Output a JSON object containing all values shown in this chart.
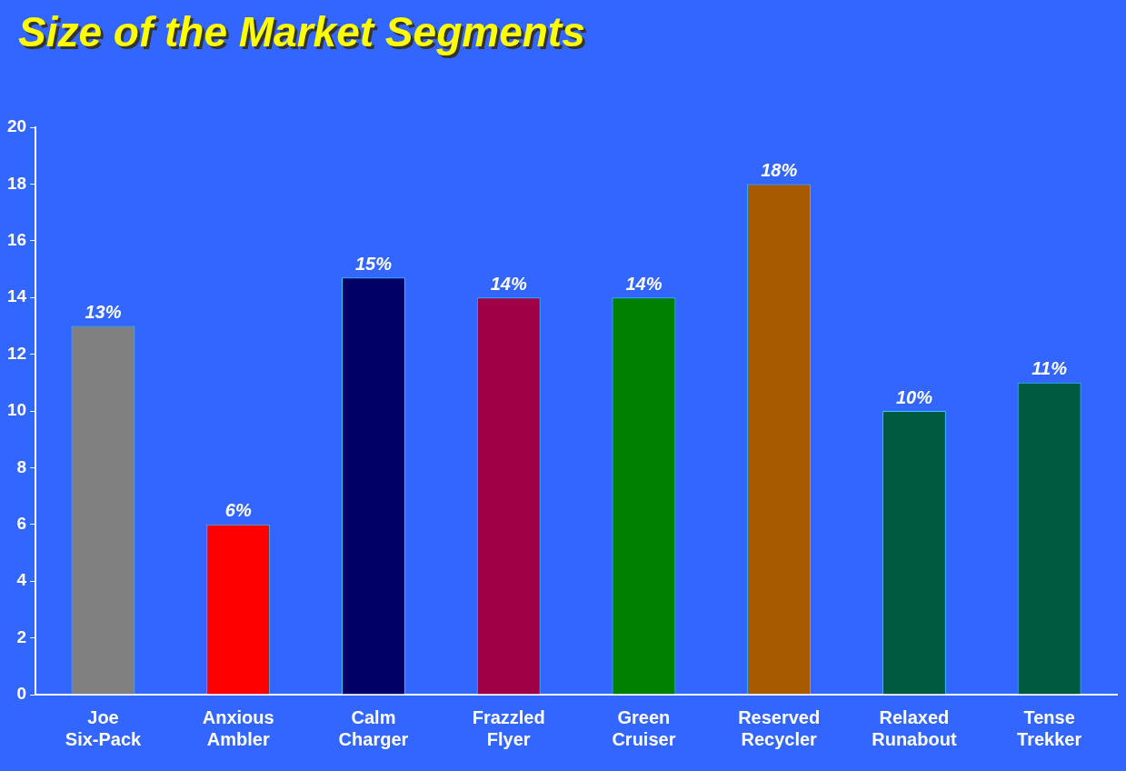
{
  "chart_data": {
    "type": "bar",
    "title": "Size of the Market Segments",
    "categories": [
      "Joe Six-Pack",
      "Anxious Ambler",
      "Calm Charger",
      "Frazzled Flyer",
      "Green Cruiser",
      "Reserved Recycler",
      "Relaxed Runabout",
      "Tense Trekker"
    ],
    "values": [
      13,
      6,
      14.7,
      14,
      14,
      18,
      10,
      11
    ],
    "colors": [
      "#808080",
      "#ff0000",
      "#000066",
      "#a00045",
      "#008000",
      "#a85a00",
      "#005a40",
      "#005a40"
    ],
    "value_labels": [
      "13%",
      "6%",
      "15%",
      "14%",
      "14%",
      "18%",
      "10%",
      "11%"
    ],
    "ylim": [
      0,
      20
    ],
    "yticks": [
      0,
      2,
      4,
      6,
      8,
      10,
      12,
      14,
      16,
      18,
      20
    ],
    "grid": false,
    "legend": false
  }
}
